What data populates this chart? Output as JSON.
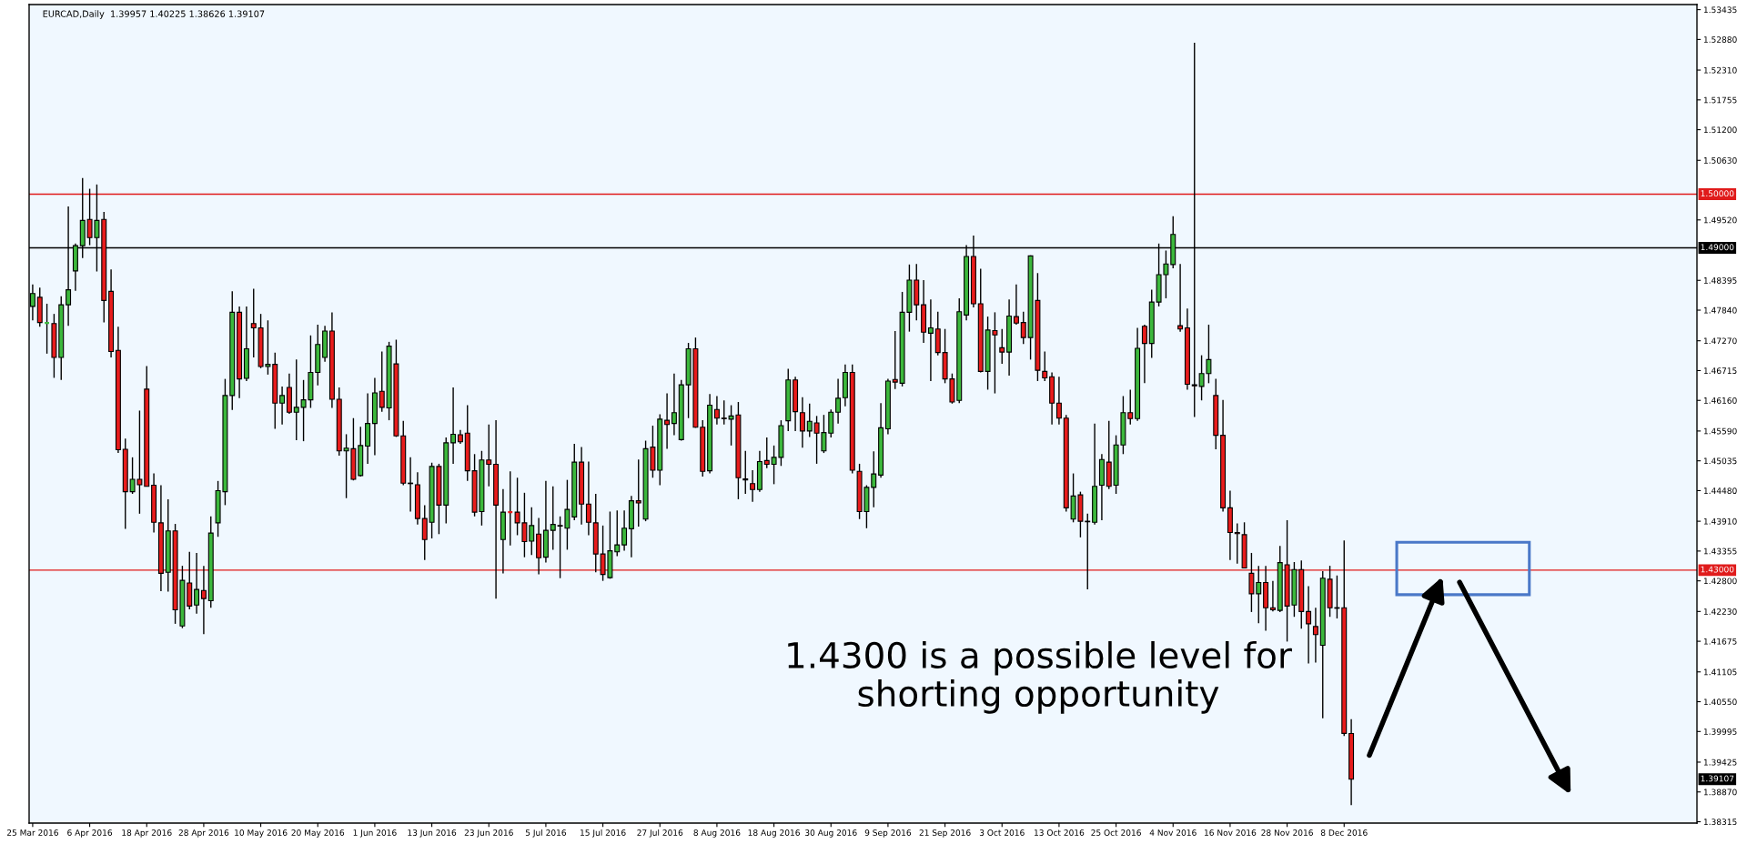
{
  "chart_data": {
    "type": "candlestick",
    "title": "EURCAD,Daily  1.39957 1.40225 1.38626 1.39107",
    "categories": [
      "25 Mar 2016",
      null,
      null,
      null,
      null,
      null,
      null,
      null,
      "6 Apr 2016",
      null,
      null,
      null,
      null,
      null,
      null,
      null,
      "18 Apr 2016",
      null,
      null,
      null,
      null,
      null,
      null,
      null,
      "28 Apr 2016",
      null,
      null,
      null,
      null,
      null,
      null,
      null,
      "10 May 2016",
      null,
      null,
      null,
      null,
      null,
      null,
      null,
      "20 May 2016",
      null,
      null,
      null,
      null,
      null,
      null,
      null,
      "1 Jun 2016",
      null,
      null,
      null,
      null,
      null,
      null,
      null,
      "13 Jun 2016",
      null,
      null,
      null,
      null,
      null,
      null,
      null,
      "23 Jun 2016",
      null,
      null,
      null,
      null,
      null,
      null,
      null,
      "5 Jul 2016",
      null,
      null,
      null,
      null,
      null,
      null,
      null,
      "15 Jul 2016",
      null,
      null,
      null,
      null,
      null,
      null,
      null,
      "27 Jul 2016",
      null,
      null,
      null,
      null,
      null,
      null,
      null,
      "8 Aug 2016",
      null,
      null,
      null,
      null,
      null,
      null,
      null,
      "18 Aug 2016",
      null,
      null,
      null,
      null,
      null,
      null,
      null,
      "30 Aug 2016",
      null,
      null,
      null,
      null,
      null,
      null,
      null,
      "9 Sep 2016",
      null,
      null,
      null,
      null,
      null,
      null,
      null,
      "21 Sep 2016",
      null,
      null,
      null,
      null,
      null,
      null,
      null,
      "3 Oct 2016",
      null,
      null,
      null,
      null,
      null,
      null,
      null,
      "13 Oct 2016",
      null,
      null,
      null,
      null,
      null,
      null,
      null,
      "25 Oct 2016",
      null,
      null,
      null,
      null,
      null,
      null,
      null,
      "4 Nov 2016",
      null,
      null,
      null,
      null,
      null,
      null,
      null,
      "16 Nov 2016",
      null,
      null,
      null,
      null,
      null,
      null,
      null,
      "28 Nov 2016",
      null,
      null,
      null,
      null,
      null,
      null,
      null,
      "8 Dec 2016",
      null,
      null,
      null,
      null,
      null,
      null,
      null,
      null,
      null,
      null,
      null,
      null,
      null,
      null,
      null,
      null,
      null,
      null,
      null,
      null,
      null,
      null,
      null,
      null,
      null,
      null,
      null,
      null,
      null,
      null,
      null,
      null,
      null,
      null,
      null,
      null,
      null,
      null,
      null,
      null,
      null,
      null,
      null,
      null,
      null,
      null,
      null,
      null,
      null
    ],
    "ohlc": [
      [
        1.4791,
        1.4832,
        1.4765,
        1.4815
      ],
      [
        1.4808,
        1.4826,
        1.4753,
        1.4761
      ],
      [
        1.476,
        1.4796,
        1.4703,
        1.476
      ],
      [
        1.4759,
        1.4777,
        1.4658,
        1.4696
      ],
      [
        1.4696,
        1.481,
        1.4654,
        1.4794
      ],
      [
        1.4794,
        1.4977,
        1.4755,
        1.4822
      ],
      [
        1.4857,
        1.4908,
        1.482,
        1.4904
      ],
      [
        1.4904,
        1.503,
        1.4881,
        1.4951
      ],
      [
        1.4953,
        1.501,
        1.4905,
        1.4919
      ],
      [
        1.4919,
        1.5018,
        1.4856,
        1.4951
      ],
      [
        1.4953,
        1.4967,
        1.4761,
        1.4802
      ],
      [
        1.4819,
        1.486,
        1.4696,
        1.4707
      ],
      [
        1.4709,
        1.4753,
        1.4518,
        1.4524
      ],
      [
        1.4525,
        1.4545,
        1.4377,
        1.4446
      ],
      [
        1.4446,
        1.451,
        1.4442,
        1.4469
      ],
      [
        1.4469,
        1.4597,
        1.4405,
        1.4459
      ],
      [
        1.4637,
        1.468,
        1.4456,
        1.4456
      ],
      [
        1.4458,
        1.448,
        1.437,
        1.4389
      ],
      [
        1.4388,
        1.4458,
        1.4261,
        1.4294
      ],
      [
        1.4296,
        1.4432,
        1.426,
        1.4373
      ],
      [
        1.4373,
        1.4386,
        1.42,
        1.4226
      ],
      [
        1.4196,
        1.4308,
        1.4192,
        1.4281
      ],
      [
        1.4276,
        1.4334,
        1.4227,
        1.4233
      ],
      [
        1.4235,
        1.4332,
        1.4219,
        1.4264
      ],
      [
        1.4262,
        1.4308,
        1.4181,
        1.4247
      ],
      [
        1.4243,
        1.44,
        1.423,
        1.4369
      ],
      [
        1.4388,
        1.4466,
        1.4362,
        1.4448
      ],
      [
        1.4446,
        1.4656,
        1.4421,
        1.4625
      ],
      [
        1.4625,
        1.4819,
        1.4598,
        1.478
      ],
      [
        1.478,
        1.4791,
        1.462,
        1.4656
      ],
      [
        1.4657,
        1.4791,
        1.4652,
        1.4712
      ],
      [
        1.4759,
        1.4824,
        1.4696,
        1.4751
      ],
      [
        1.4751,
        1.4777,
        1.4676,
        1.4679
      ],
      [
        1.4679,
        1.4765,
        1.4664,
        1.4683
      ],
      [
        1.4683,
        1.4705,
        1.4563,
        1.4611
      ],
      [
        1.4611,
        1.4642,
        1.4571,
        1.4625
      ],
      [
        1.464,
        1.4666,
        1.4591,
        1.4594
      ],
      [
        1.4594,
        1.4692,
        1.4542,
        1.4603
      ],
      [
        1.4603,
        1.4654,
        1.454,
        1.4617
      ],
      [
        1.4617,
        1.4737,
        1.4602,
        1.4668
      ],
      [
        1.4668,
        1.4757,
        1.4644,
        1.472
      ],
      [
        1.4696,
        1.4755,
        1.4688,
        1.4745
      ],
      [
        1.4745,
        1.478,
        1.4602,
        1.4618
      ],
      [
        1.4618,
        1.464,
        1.4513,
        1.4522
      ],
      [
        1.4522,
        1.4553,
        1.4434,
        1.4527
      ],
      [
        1.4526,
        1.4583,
        1.4467,
        1.4469
      ],
      [
        1.4476,
        1.4567,
        1.4474,
        1.4532
      ],
      [
        1.4531,
        1.4629,
        1.4498,
        1.4573
      ],
      [
        1.4573,
        1.4658,
        1.4514,
        1.463
      ],
      [
        1.4633,
        1.4707,
        1.4595,
        1.4603
      ],
      [
        1.4602,
        1.4725,
        1.4579,
        1.4717
      ],
      [
        1.4684,
        1.4729,
        1.4548,
        1.455
      ],
      [
        1.455,
        1.4578,
        1.4458,
        1.4462
      ],
      [
        1.4462,
        1.451,
        1.4409,
        1.4461
      ],
      [
        1.4459,
        1.4482,
        1.4385,
        1.4396
      ],
      [
        1.4396,
        1.4421,
        1.4319,
        1.4357
      ],
      [
        1.4389,
        1.45,
        1.4359,
        1.4493
      ],
      [
        1.4493,
        1.4498,
        1.4367,
        1.4421
      ],
      [
        1.4421,
        1.4547,
        1.4387,
        1.4537
      ],
      [
        1.4537,
        1.464,
        1.4498,
        1.4553
      ],
      [
        1.4552,
        1.4561,
        1.4535,
        1.4539
      ],
      [
        1.4555,
        1.4607,
        1.4466,
        1.4485
      ],
      [
        1.4485,
        1.4516,
        1.44,
        1.4408
      ],
      [
        1.4409,
        1.4522,
        1.4383,
        1.4505
      ],
      [
        1.4505,
        1.4571,
        1.4456,
        1.4497
      ],
      [
        1.4497,
        1.4579,
        1.4247,
        1.4421
      ],
      [
        1.4357,
        1.4451,
        1.4294,
        1.4408
      ],
      [
        1.4408,
        1.4484,
        1.4346,
        1.4408
      ],
      [
        1.4408,
        1.4472,
        1.4365,
        1.4388
      ],
      [
        1.4388,
        1.4444,
        1.4324,
        1.4353
      ],
      [
        1.4354,
        1.4417,
        1.4328,
        1.4383
      ],
      [
        1.4367,
        1.4397,
        1.4292,
        1.4323
      ],
      [
        1.4324,
        1.4466,
        1.4314,
        1.4374
      ],
      [
        1.4374,
        1.4456,
        1.4338,
        1.4385
      ],
      [
        1.4383,
        1.44,
        1.4285,
        1.4382
      ],
      [
        1.4378,
        1.4468,
        1.4338,
        1.4413
      ],
      [
        1.4399,
        1.4535,
        1.4393,
        1.4501
      ],
      [
        1.4501,
        1.4529,
        1.4385,
        1.4423
      ],
      [
        1.4423,
        1.4502,
        1.4365,
        1.4389
      ],
      [
        1.4388,
        1.4442,
        1.4296,
        1.433
      ],
      [
        1.433,
        1.4383,
        1.428,
        1.4292
      ],
      [
        1.4286,
        1.4409,
        1.4284,
        1.4336
      ],
      [
        1.4334,
        1.4411,
        1.4326,
        1.4347
      ],
      [
        1.4347,
        1.4411,
        1.4336,
        1.4378
      ],
      [
        1.4377,
        1.4438,
        1.4324,
        1.4429
      ],
      [
        1.4429,
        1.4506,
        1.4381,
        1.4425
      ],
      [
        1.4395,
        1.4541,
        1.4391,
        1.4526
      ],
      [
        1.4529,
        1.4569,
        1.4472,
        1.4486
      ],
      [
        1.4486,
        1.459,
        1.4458,
        1.4581
      ],
      [
        1.4579,
        1.4629,
        1.4526,
        1.4571
      ],
      [
        1.4573,
        1.4666,
        1.4551,
        1.4593
      ],
      [
        1.4543,
        1.4654,
        1.4541,
        1.4645
      ],
      [
        1.4645,
        1.4723,
        1.4583,
        1.4712
      ],
      [
        1.4712,
        1.4733,
        1.4565,
        1.4566
      ],
      [
        1.4566,
        1.4579,
        1.4474,
        1.4484
      ],
      [
        1.4485,
        1.4628,
        1.448,
        1.4607
      ],
      [
        1.4599,
        1.4624,
        1.4571,
        1.4583
      ],
      [
        1.4583,
        1.4616,
        1.4571,
        1.4582
      ],
      [
        1.4581,
        1.4607,
        1.4532,
        1.4587
      ],
      [
        1.4589,
        1.4613,
        1.4432,
        1.4472
      ],
      [
        1.447,
        1.4522,
        1.4442,
        1.4468
      ],
      [
        1.4461,
        1.4486,
        1.4427,
        1.445
      ],
      [
        1.445,
        1.4522,
        1.4446,
        1.4502
      ],
      [
        1.4504,
        1.4547,
        1.449,
        1.4497
      ],
      [
        1.4497,
        1.4532,
        1.446,
        1.451
      ],
      [
        1.451,
        1.4579,
        1.4494,
        1.4569
      ],
      [
        1.4578,
        1.4675,
        1.4559,
        1.4654
      ],
      [
        1.4654,
        1.466,
        1.4559,
        1.4595
      ],
      [
        1.4593,
        1.4622,
        1.4528,
        1.4559
      ],
      [
        1.4559,
        1.461,
        1.4548,
        1.4577
      ],
      [
        1.4574,
        1.4587,
        1.4498,
        1.4555
      ],
      [
        1.4522,
        1.4589,
        1.4518,
        1.4556
      ],
      [
        1.4555,
        1.4599,
        1.4547,
        1.4594
      ],
      [
        1.4594,
        1.4656,
        1.4573,
        1.462
      ],
      [
        1.4621,
        1.4683,
        1.4605,
        1.4668
      ],
      [
        1.4668,
        1.4683,
        1.448,
        1.4486
      ],
      [
        1.4484,
        1.4498,
        1.4395,
        1.4409
      ],
      [
        1.4409,
        1.4458,
        1.4378,
        1.4454
      ],
      [
        1.4454,
        1.4521,
        1.4417,
        1.4479
      ],
      [
        1.4477,
        1.4611,
        1.4472,
        1.4565
      ],
      [
        1.4563,
        1.4656,
        1.4553,
        1.4652
      ],
      [
        1.4655,
        1.4745,
        1.4637,
        1.465
      ],
      [
        1.4648,
        1.4818,
        1.4642,
        1.478
      ],
      [
        1.478,
        1.4869,
        1.4744,
        1.484
      ],
      [
        1.484,
        1.487,
        1.4765,
        1.4794
      ],
      [
        1.4794,
        1.484,
        1.4723,
        1.4743
      ],
      [
        1.4741,
        1.4804,
        1.4652,
        1.4751
      ],
      [
        1.4749,
        1.4781,
        1.47,
        1.4705
      ],
      [
        1.4705,
        1.4749,
        1.4648,
        1.4656
      ],
      [
        1.4656,
        1.4666,
        1.461,
        1.4613
      ],
      [
        1.4616,
        1.4806,
        1.4611,
        1.4781
      ],
      [
        1.4775,
        1.4905,
        1.4765,
        1.4884
      ],
      [
        1.4884,
        1.4923,
        1.4789,
        1.4796
      ],
      [
        1.4796,
        1.4861,
        1.4668,
        1.467
      ],
      [
        1.467,
        1.4772,
        1.4636,
        1.4747
      ],
      [
        1.4746,
        1.478,
        1.4629,
        1.4738
      ],
      [
        1.4714,
        1.4749,
        1.4684,
        1.4706
      ],
      [
        1.4706,
        1.4804,
        1.4662,
        1.4773
      ],
      [
        1.4772,
        1.4832,
        1.4757,
        1.476
      ],
      [
        1.4761,
        1.4781,
        1.4721,
        1.4733
      ],
      [
        1.4733,
        1.4886,
        1.4692,
        1.4885
      ],
      [
        1.4802,
        1.4853,
        1.4652,
        1.4672
      ],
      [
        1.467,
        1.4707,
        1.4652,
        1.4658
      ],
      [
        1.466,
        1.4668,
        1.4571,
        1.4611
      ],
      [
        1.4611,
        1.466,
        1.4571,
        1.4583
      ],
      [
        1.4583,
        1.4589,
        1.4409,
        1.4416
      ],
      [
        1.4395,
        1.448,
        1.4389,
        1.4438
      ],
      [
        1.444,
        1.4446,
        1.4361,
        1.4391
      ],
      [
        1.4391,
        1.4405,
        1.4264,
        1.439
      ],
      [
        1.4389,
        1.4573,
        1.4385,
        1.4456
      ],
      [
        1.4458,
        1.4516,
        1.4393,
        1.4506
      ],
      [
        1.4501,
        1.4578,
        1.4451,
        1.4456
      ],
      [
        1.4458,
        1.4551,
        1.4442,
        1.4533
      ],
      [
        1.4533,
        1.4624,
        1.4516,
        1.4593
      ],
      [
        1.4593,
        1.4636,
        1.4571,
        1.4582
      ],
      [
        1.4582,
        1.4751,
        1.4578,
        1.4713
      ],
      [
        1.4754,
        1.4757,
        1.4648,
        1.4722
      ],
      [
        1.4722,
        1.4822,
        1.4695,
        1.4799
      ],
      [
        1.4799,
        1.4908,
        1.4791,
        1.485
      ],
      [
        1.485,
        1.4895,
        1.4806,
        1.487
      ],
      [
        1.4869,
        1.4959,
        1.4862,
        1.4925
      ],
      [
        1.4755,
        1.487,
        1.4744,
        1.4749
      ],
      [
        1.4751,
        1.4787,
        1.4636,
        1.4646
      ],
      [
        1.4645,
        1.5282,
        1.4585,
        1.4643
      ],
      [
        1.4642,
        1.47,
        1.4616,
        1.4666
      ],
      [
        1.4666,
        1.4757,
        1.4648,
        1.4692
      ],
      [
        1.4625,
        1.4656,
        1.4525,
        1.4551
      ],
      [
        1.4551,
        1.4617,
        1.4409,
        1.4416
      ],
      [
        1.4416,
        1.4448,
        1.4319,
        1.437
      ],
      [
        1.437,
        1.4387,
        1.4312,
        1.4368
      ],
      [
        1.4366,
        1.4389,
        1.4304,
        1.4304
      ],
      [
        1.4294,
        1.4332,
        1.4222,
        1.4256
      ],
      [
        1.4256,
        1.4308,
        1.4201,
        1.4277
      ],
      [
        1.4277,
        1.4308,
        1.4187,
        1.423
      ],
      [
        1.423,
        1.428,
        1.4223,
        1.4226
      ],
      [
        1.4225,
        1.4345,
        1.4222,
        1.4314
      ],
      [
        1.431,
        1.4393,
        1.4167,
        1.4233
      ],
      [
        1.4235,
        1.4315,
        1.4213,
        1.4301
      ],
      [
        1.4301,
        1.4318,
        1.4191,
        1.4223
      ],
      [
        1.4223,
        1.427,
        1.4126,
        1.42
      ],
      [
        1.4195,
        1.423,
        1.4128,
        1.418
      ],
      [
        1.416,
        1.4298,
        1.4024,
        1.4285
      ],
      [
        1.4283,
        1.4308,
        1.4213,
        1.423
      ],
      [
        1.423,
        1.429,
        1.421,
        1.4229
      ],
      [
        1.423,
        1.4355,
        1.3991,
        1.3996
      ],
      [
        1.39957,
        1.40225,
        1.38626,
        1.39107
      ],
      null,
      null,
      null,
      null,
      null,
      null,
      null,
      null,
      null,
      null,
      null,
      null,
      null,
      null,
      null,
      null,
      null,
      null,
      null,
      null,
      null,
      null,
      null,
      null,
      null,
      null,
      null,
      null,
      null,
      null,
      null,
      null,
      null,
      null,
      null,
      null,
      null,
      null,
      null,
      null,
      null,
      null,
      null,
      null,
      null,
      null,
      null,
      null
    ],
    "colors": [
      "#3cb83c",
      "#e81c1c",
      "#3cb83c",
      "#e81c1c",
      "#3cb83c",
      "#3cb83c",
      "#3cb83c",
      "#3cb83c",
      "#e81c1c",
      "#3cb83c",
      "#e81c1c",
      "#e81c1c",
      "#e81c1c",
      "#e81c1c",
      "#3cb83c",
      "#e81c1c",
      "#e81c1c",
      "#e81c1c",
      "#e81c1c",
      "#3cb83c",
      "#e81c1c",
      "#3cb83c",
      "#e81c1c",
      "#3cb83c",
      "#e81c1c",
      "#3cb83c",
      "#3cb83c",
      "#3cb83c",
      "#3cb83c",
      "#e81c1c",
      "#3cb83c",
      "#e81c1c",
      "#e81c1c",
      "#3cb83c",
      "#e81c1c",
      "#3cb83c",
      "#e81c1c",
      "#3cb83c",
      "#3cb83c",
      "#3cb83c",
      "#3cb83c",
      "#3cb83c",
      "#e81c1c",
      "#e81c1c",
      "#3cb83c",
      "#e81c1c",
      "#3cb83c",
      "#3cb83c",
      "#3cb83c",
      "#e81c1c",
      "#3cb83c",
      "#e81c1c",
      "#e81c1c",
      "#e81c1c",
      "#e81c1c",
      "#e81c1c",
      "#3cb83c",
      "#e81c1c",
      "#3cb83c",
      "#3cb83c",
      "#e81c1c",
      "#e81c1c",
      "#e81c1c",
      "#3cb83c",
      "#e81c1c",
      "#e81c1c",
      "#3cb83c",
      "#e81c1c",
      "#e81c1c",
      "#e81c1c",
      "#3cb83c",
      "#e81c1c",
      "#3cb83c",
      "#3cb83c",
      "#e81c1c",
      "#3cb83c",
      "#3cb83c",
      "#e81c1c",
      "#e81c1c",
      "#e81c1c",
      "#e81c1c",
      "#3cb83c",
      "#3cb83c",
      "#3cb83c",
      "#3cb83c",
      "#e81c1c",
      "#3cb83c",
      "#e81c1c",
      "#3cb83c",
      "#e81c1c",
      "#3cb83c",
      "#3cb83c",
      "#3cb83c",
      "#e81c1c",
      "#e81c1c",
      "#3cb83c",
      "#e81c1c",
      "#e81c1c",
      "#3cb83c",
      "#e81c1c",
      "#e81c1c",
      "#e81c1c",
      "#3cb83c",
      "#e81c1c",
      "#3cb83c",
      "#3cb83c",
      "#3cb83c",
      "#e81c1c",
      "#e81c1c",
      "#3cb83c",
      "#e81c1c",
      "#3cb83c",
      "#3cb83c",
      "#3cb83c",
      "#3cb83c",
      "#e81c1c",
      "#e81c1c",
      "#3cb83c",
      "#3cb83c",
      "#3cb83c",
      "#3cb83c",
      "#e81c1c",
      "#3cb83c",
      "#3cb83c",
      "#e81c1c",
      "#e81c1c",
      "#3cb83c",
      "#e81c1c",
      "#e81c1c",
      "#e81c1c",
      "#3cb83c",
      "#3cb83c",
      "#e81c1c",
      "#e81c1c",
      "#3cb83c",
      "#e81c1c",
      "#e81c1c",
      "#3cb83c",
      "#e81c1c",
      "#e81c1c",
      "#3cb83c",
      "#e81c1c",
      "#e81c1c",
      "#e81c1c",
      "#e81c1c",
      "#e81c1c",
      "#3cb83c",
      "#e81c1c",
      "#e81c1c",
      "#3cb83c",
      "#3cb83c",
      "#e81c1c",
      "#3cb83c",
      "#3cb83c",
      "#e81c1c",
      "#3cb83c",
      "#e81c1c",
      "#3cb83c",
      "#3cb83c",
      "#3cb83c",
      "#3cb83c",
      "#e81c1c",
      "#e81c1c",
      "#e81c1c",
      "#3cb83c",
      "#3cb83c",
      "#e81c1c",
      "#e81c1c",
      "#e81c1c",
      "#e81c1c",
      "#e81c1c",
      "#e81c1c",
      "#3cb83c",
      "#e81c1c",
      "#e81c1c",
      "#3cb83c",
      "#e81c1c",
      "#3cb83c",
      "#e81c1c",
      "#e81c1c",
      "#e81c1c",
      "#3cb83c",
      "#e81c1c",
      "#e81c1c",
      "#e81c1c",
      "#e81c1c",
      null,
      null,
      null,
      null,
      null,
      null,
      null,
      null,
      null,
      null,
      null,
      null,
      null,
      null,
      null,
      null,
      null,
      null,
      null,
      null,
      null,
      null,
      null,
      null,
      null,
      null,
      null,
      null,
      null,
      null,
      null,
      null,
      null,
      null,
      null,
      null,
      null,
      null,
      null,
      null,
      null,
      null,
      null,
      null,
      null,
      null,
      null,
      null
    ],
    "ylim": [
      1.3829,
      1.5353
    ],
    "yticks": [
      {
        "value": 1.53435,
        "label": "1.53435"
      },
      {
        "value": 1.5288,
        "label": "1.52880"
      },
      {
        "value": 1.5231,
        "label": "1.52310"
      },
      {
        "value": 1.51755,
        "label": "1.51755"
      },
      {
        "value": 1.512,
        "label": "1.51200"
      },
      {
        "value": 1.5063,
        "label": "1.50630"
      },
      {
        "value": 1.4952,
        "label": "1.49520"
      },
      {
        "value": 1.48395,
        "label": "1.48395"
      },
      {
        "value": 1.4784,
        "label": "1.47840"
      },
      {
        "value": 1.4727,
        "label": "1.47270"
      },
      {
        "value": 1.46715,
        "label": "1.46715"
      },
      {
        "value": 1.4616,
        "label": "1.46160"
      },
      {
        "value": 1.4559,
        "label": "1.45590"
      },
      {
        "value": 1.45035,
        "label": "1.45035"
      },
      {
        "value": 1.4448,
        "label": "1.44480"
      },
      {
        "value": 1.4391,
        "label": "1.43910"
      },
      {
        "value": 1.43355,
        "label": "1.43355"
      },
      {
        "value": 1.428,
        "label": "1.42800"
      },
      {
        "value": 1.4223,
        "label": "1.42230"
      },
      {
        "value": 1.41675,
        "label": "1.41675"
      },
      {
        "value": 1.41105,
        "label": "1.41105"
      },
      {
        "value": 1.4055,
        "label": "1.40550"
      },
      {
        "value": 1.39995,
        "label": "1.39995"
      },
      {
        "value": 1.39425,
        "label": "1.39425"
      },
      {
        "value": 1.3887,
        "label": "1.38870"
      },
      {
        "value": 1.38315,
        "label": "1.38315"
      }
    ],
    "ref_lines": [
      {
        "axis": "y",
        "value": 1.5,
        "label": "1.50000",
        "color": "#e01b1b"
      },
      {
        "axis": "y",
        "value": 1.49,
        "label": "1.49000",
        "color": "#000000"
      },
      {
        "axis": "y",
        "value": 1.43,
        "label": "1.43000",
        "color": "#e01b1b"
      }
    ],
    "annotations": [
      "1.4300 is a possible level for\nshorting opportunity",
      "1.39107"
    ]
  }
}
